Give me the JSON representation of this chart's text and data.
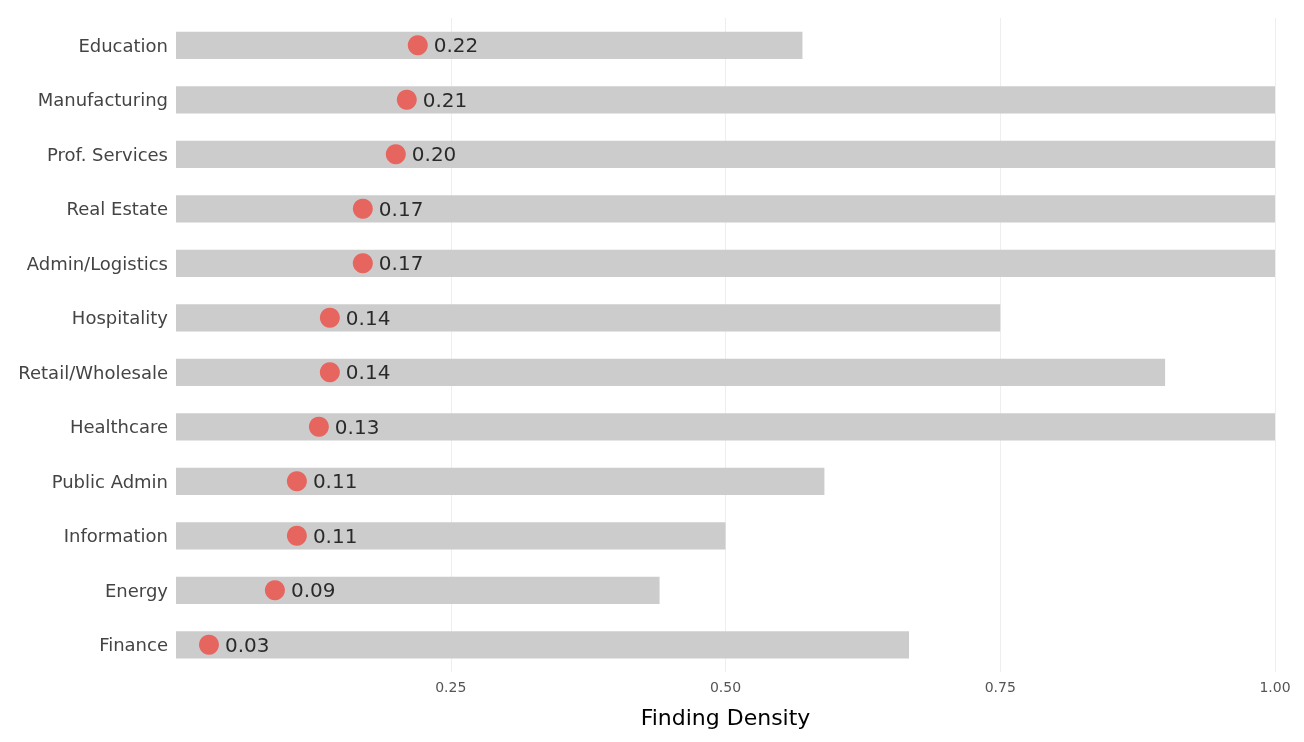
{
  "chart_data": {
    "type": "bar",
    "orientation": "horizontal",
    "xlabel": "Finding Density",
    "categories": [
      "Education",
      "Manufacturing",
      "Prof. Services",
      "Real Estate",
      "Admin/Logistics",
      "Hospitality",
      "Retail/Wholesale",
      "Healthcare",
      "Public Admin",
      "Information",
      "Energy",
      "Finance"
    ],
    "series": [
      {
        "color": "#cccccc",
        "values": [
          0.57,
          1.0,
          1.0,
          1.0,
          1.0,
          0.75,
          0.9,
          1.0,
          0.59,
          0.5,
          0.44,
          0.667
        ]
      },
      {
        "type": "scatter",
        "color": "#ee4b43",
        "values": [
          0.22,
          0.21,
          0.2,
          0.17,
          0.17,
          0.14,
          0.14,
          0.13,
          0.11,
          0.11,
          0.09,
          0.03
        ],
        "value_labels": [
          "0.22",
          "0.21",
          "0.20",
          "0.17",
          "0.17",
          "0.14",
          "0.14",
          "0.13",
          "0.11",
          "0.11",
          "0.09",
          "0.03"
        ]
      }
    ],
    "xlim": [
      0,
      1
    ],
    "xticks": [
      {
        "value": 0.25,
        "label": "0.25"
      },
      {
        "value": 0.5,
        "label": "0.50"
      },
      {
        "value": 0.75,
        "label": "0.75"
      },
      {
        "value": 1,
        "label": "1.00"
      }
    ],
    "grid": "x",
    "marker": "circle"
  }
}
